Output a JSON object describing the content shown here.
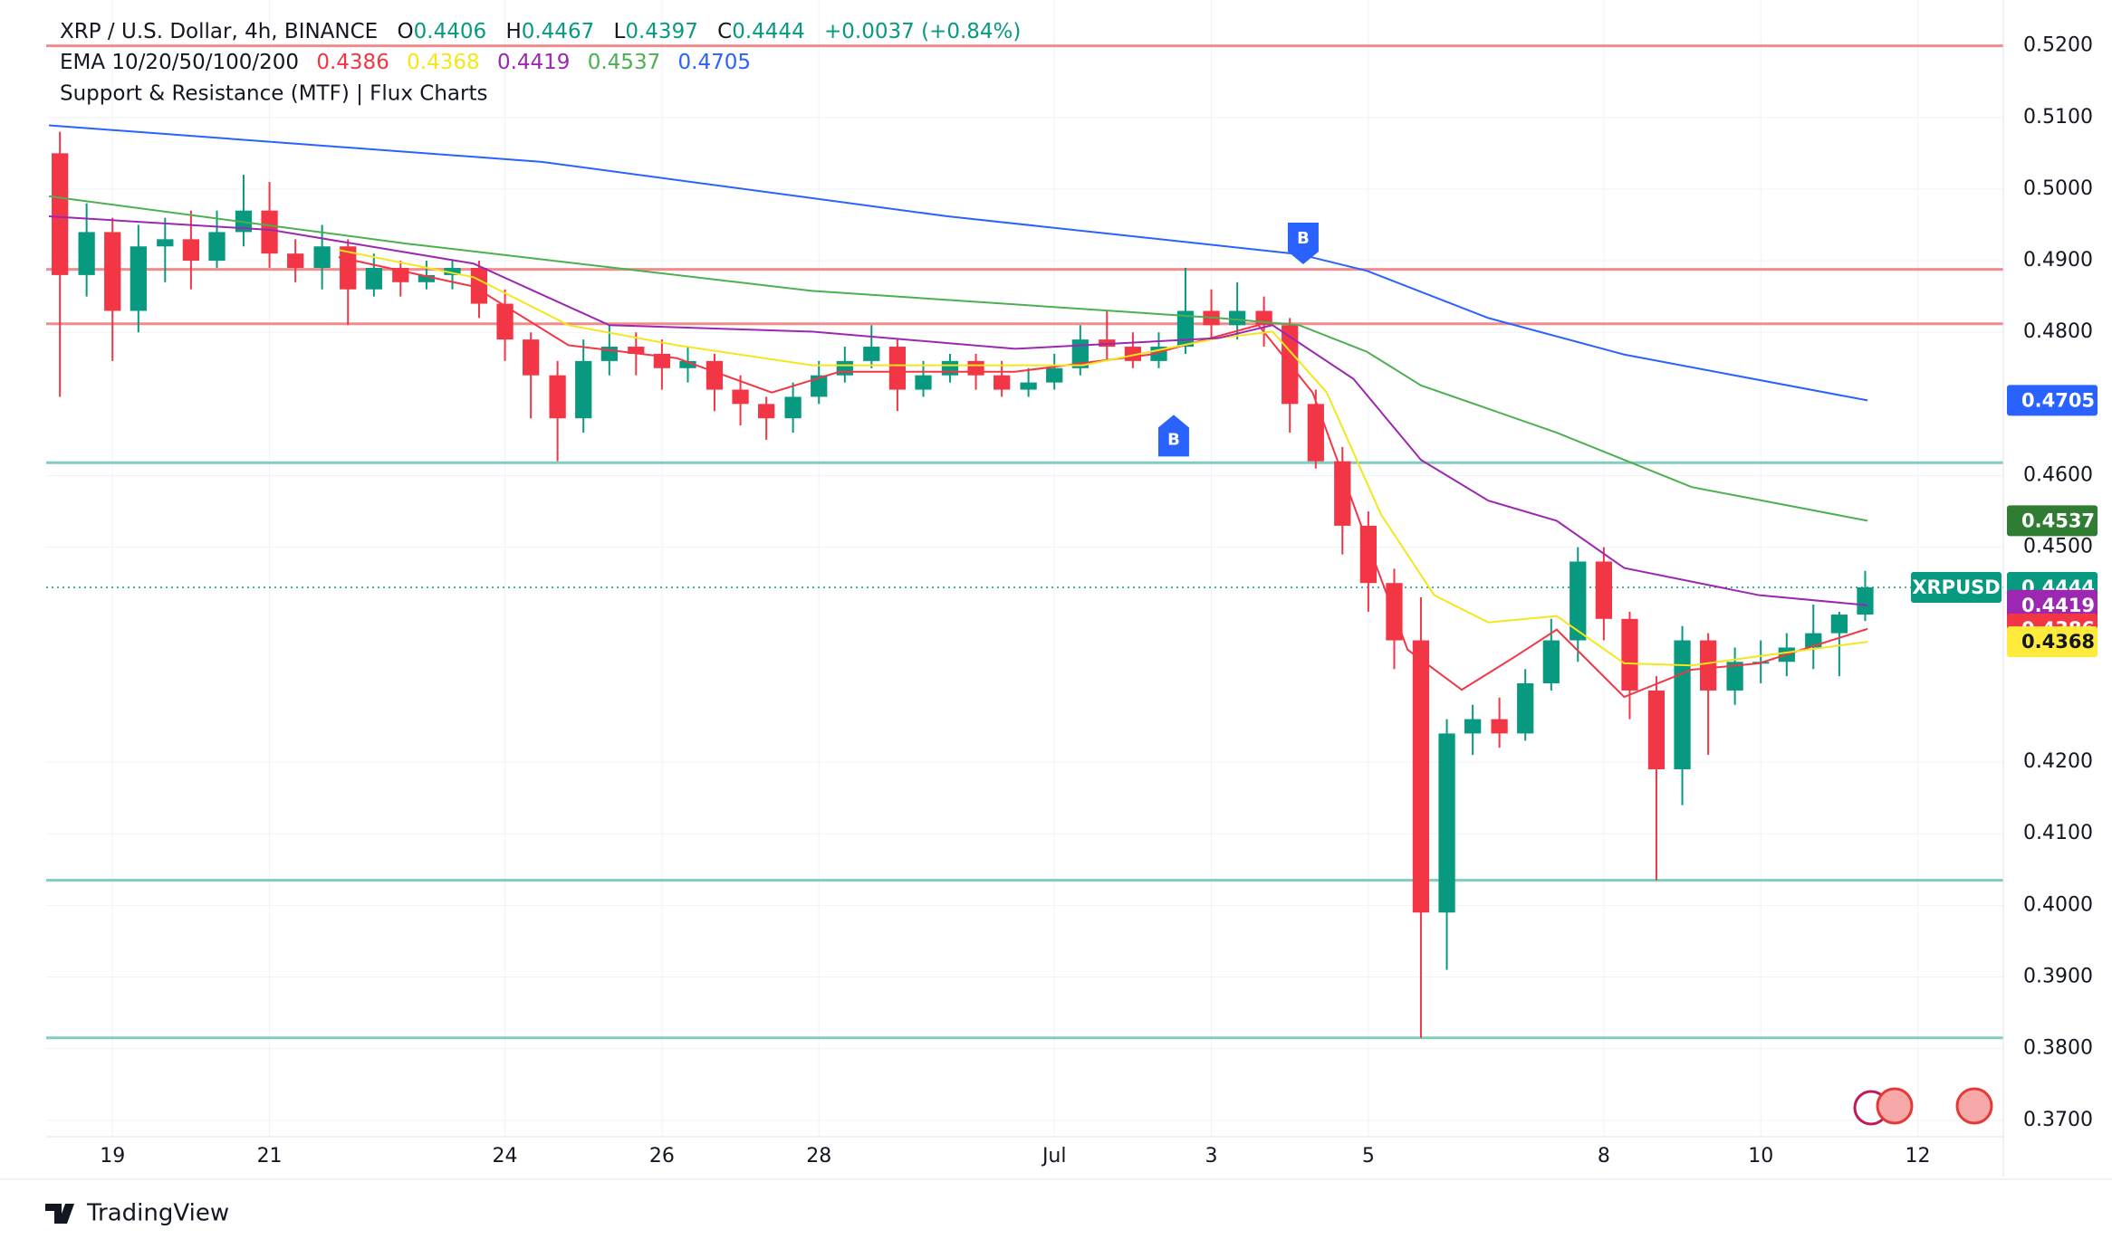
{
  "header": {
    "symbol": "XRP / U.S. Dollar, 4h, BINANCE",
    "ohlc_labels": [
      "O",
      "H",
      "L",
      "C"
    ],
    "change": "+0.0037 (+0.84%)",
    "ema_title": "EMA 10/20/50/100/200",
    "indicator": "Support & Resistance (MTF) | Flux Charts",
    "symbol_tag": "XRPUSD",
    "logo": "TradingView"
  },
  "chart_data": {
    "type": "candlestick",
    "x": [
      0.33,
      0.67,
      1,
      1.33,
      1.67,
      2,
      2.33,
      2.67,
      3,
      3.33,
      3.67,
      4,
      4.33,
      4.67,
      5,
      5.33,
      5.67,
      6,
      6.33,
      6.67,
      7,
      7.33,
      7.67,
      8,
      8.33,
      8.67,
      9,
      9.33,
      9.67,
      10,
      10.33,
      10.67,
      11,
      11.33,
      11.67,
      12,
      12.33,
      12.67,
      13,
      13.33,
      13.67,
      14,
      14.33,
      14.67,
      15,
      15.33,
      15.67,
      16,
      16.33,
      16.67,
      17,
      17.33,
      17.67,
      18,
      18.33,
      18.67,
      19,
      19.33,
      19.67,
      20,
      20.33,
      20.67,
      21,
      21.33,
      21.67,
      22,
      22.33,
      22.67,
      23,
      23.33
    ],
    "open": [
      0.505,
      0.488,
      0.494,
      0.483,
      0.492,
      0.493,
      0.49,
      0.494,
      0.497,
      0.491,
      0.489,
      0.492,
      0.486,
      0.489,
      0.487,
      0.488,
      0.489,
      0.484,
      0.479,
      0.474,
      0.468,
      0.476,
      0.478,
      0.477,
      0.475,
      0.476,
      0.472,
      0.47,
      0.468,
      0.471,
      0.474,
      0.476,
      0.478,
      0.472,
      0.474,
      0.476,
      0.474,
      0.472,
      0.473,
      0.475,
      0.479,
      0.478,
      0.476,
      0.478,
      0.483,
      0.481,
      0.483,
      0.481,
      0.47,
      0.462,
      0.453,
      0.445,
      0.437,
      0.399,
      0.424,
      0.426,
      0.424,
      0.431,
      0.437,
      0.448,
      0.44,
      0.43,
      0.419,
      0.437,
      0.43,
      0.434,
      0.434,
      0.436,
      0.438,
      0.4406
    ],
    "high": [
      0.508,
      0.498,
      0.496,
      0.495,
      0.496,
      0.497,
      0.497,
      0.502,
      0.501,
      0.493,
      0.495,
      0.493,
      0.491,
      0.49,
      0.49,
      0.49,
      0.49,
      0.486,
      0.48,
      0.476,
      0.479,
      0.481,
      0.48,
      0.479,
      0.478,
      0.477,
      0.474,
      0.471,
      0.473,
      0.476,
      0.478,
      0.481,
      0.479,
      0.476,
      0.477,
      0.477,
      0.476,
      0.475,
      0.477,
      0.481,
      0.483,
      0.48,
      0.48,
      0.489,
      0.486,
      0.487,
      0.485,
      0.482,
      0.472,
      0.464,
      0.455,
      0.447,
      0.443,
      0.426,
      0.428,
      0.429,
      0.433,
      0.44,
      0.45,
      0.45,
      0.441,
      0.432,
      0.439,
      0.438,
      0.436,
      0.437,
      0.438,
      0.442,
      0.441,
      0.4467
    ],
    "low": [
      0.471,
      0.485,
      0.476,
      0.48,
      0.487,
      0.486,
      0.489,
      0.492,
      0.489,
      0.487,
      0.486,
      0.481,
      0.485,
      0.485,
      0.486,
      0.486,
      0.482,
      0.476,
      0.468,
      0.462,
      0.466,
      0.474,
      0.474,
      0.472,
      0.473,
      0.469,
      0.467,
      0.465,
      0.466,
      0.47,
      0.473,
      0.475,
      0.469,
      0.471,
      0.473,
      0.472,
      0.471,
      0.471,
      0.472,
      0.474,
      0.476,
      0.475,
      0.475,
      0.477,
      0.479,
      0.479,
      0.478,
      0.466,
      0.461,
      0.449,
      0.441,
      0.433,
      0.3815,
      0.391,
      0.421,
      0.422,
      0.423,
      0.43,
      0.434,
      0.437,
      0.426,
      0.4035,
      0.414,
      0.421,
      0.428,
      0.431,
      0.432,
      0.433,
      0.432,
      0.4397
    ],
    "close": [
      0.488,
      0.494,
      0.483,
      0.492,
      0.493,
      0.49,
      0.494,
      0.497,
      0.491,
      0.489,
      0.492,
      0.486,
      0.489,
      0.487,
      0.488,
      0.489,
      0.484,
      0.479,
      0.474,
      0.468,
      0.476,
      0.478,
      0.477,
      0.475,
      0.476,
      0.472,
      0.47,
      0.468,
      0.471,
      0.474,
      0.476,
      0.478,
      0.472,
      0.474,
      0.476,
      0.474,
      0.472,
      0.473,
      0.475,
      0.479,
      0.478,
      0.476,
      0.478,
      0.483,
      0.481,
      0.483,
      0.481,
      0.47,
      0.462,
      0.453,
      0.445,
      0.437,
      0.399,
      0.424,
      0.426,
      0.424,
      0.431,
      0.437,
      0.448,
      0.44,
      0.43,
      0.419,
      0.437,
      0.43,
      0.434,
      0.434,
      0.436,
      0.438,
      0.4406,
      0.4444
    ],
    "up_color": "#089981",
    "down_color": "#f23645",
    "ema": [
      {
        "color": "#f23645",
        "x": [
          3.88,
          5.6,
          6.81,
          8.19,
          9.4,
          10.26,
          12.5,
          14.22,
          15.6,
          16.29,
          16.98,
          17.5,
          18.19,
          18.88,
          19.4,
          20.26,
          21.12,
          21.98,
          23.36
        ],
        "values": [
          0.4905,
          0.4864,
          0.4782,
          0.4764,
          0.4716,
          0.4745,
          0.4745,
          0.4769,
          0.481,
          0.4716,
          0.4509,
          0.4357,
          0.4301,
          0.4348,
          0.4385,
          0.4291,
          0.4329,
          0.4338,
          0.4386
        ]
      },
      {
        "color": "#f5e61b",
        "x": [
          3.88,
          5.6,
          6.81,
          8.19,
          9.91,
          13.36,
          15.09,
          15.78,
          16.47,
          17.16,
          17.84,
          18.53,
          19.4,
          20.26,
          21.12,
          21.98,
          23.36
        ],
        "values": [
          0.4915,
          0.4877,
          0.481,
          0.4782,
          0.4754,
          0.4754,
          0.4792,
          0.4801,
          0.4716,
          0.4546,
          0.4433,
          0.4395,
          0.4404,
          0.4338,
          0.4335,
          0.4348,
          0.4368
        ]
      },
      {
        "color": "#9c27b0",
        "x": [
          0.19,
          3.02,
          5.6,
          7.33,
          9.91,
          12.5,
          15.09,
          15.78,
          16.81,
          17.67,
          18.53,
          19.4,
          20.26,
          21.98,
          23.36
        ],
        "values": [
          0.4962,
          0.4943,
          0.4896,
          0.481,
          0.4801,
          0.4777,
          0.4792,
          0.481,
          0.4735,
          0.4622,
          0.4565,
          0.4537,
          0.4471,
          0.4433,
          0.4419
        ]
      },
      {
        "color": "#4caf50",
        "x": [
          0.19,
          4.74,
          9.91,
          15.09,
          16.12,
          16.98,
          17.67,
          19.4,
          21.12,
          23.36
        ],
        "values": [
          0.499,
          0.4924,
          0.4858,
          0.482,
          0.481,
          0.4773,
          0.4726,
          0.466,
          0.4584,
          0.4537
        ]
      },
      {
        "color": "#2962ff",
        "x": [
          0.19,
          6.47,
          11.64,
          16.12,
          16.98,
          18.53,
          20.26,
          23.36
        ],
        "values": [
          0.5089,
          0.5038,
          0.4962,
          0.4909,
          0.4886,
          0.482,
          0.4769,
          0.4705
        ]
      }
    ],
    "levels": [
      {
        "value": 0.52,
        "color": "#f28b8b"
      },
      {
        "value": 0.4888,
        "color": "#f28b8b"
      },
      {
        "value": 0.4812,
        "color": "#f28b8b"
      },
      {
        "value": 0.4618,
        "color": "#7ecdc0"
      },
      {
        "value": 0.4035,
        "color": "#7ecdc0"
      },
      {
        "value": 0.3815,
        "color": "#7ecdc0"
      }
    ],
    "markers": [
      {
        "label": "B",
        "x": 14.52,
        "y": 0.4695,
        "position": "below",
        "color": "#2962ff"
      },
      {
        "label": "B",
        "x": 16.17,
        "y": 0.4885,
        "position": "above",
        "color": "#2962ff"
      }
    ],
    "xlim": [
      0.155,
      25.09
    ],
    "xticks": [
      {
        "value": 1,
        "label": "19"
      },
      {
        "value": 3,
        "label": "21"
      },
      {
        "value": 6,
        "label": "24"
      },
      {
        "value": 8,
        "label": "26"
      },
      {
        "value": 10,
        "label": "28"
      },
      {
        "value": 13,
        "label": "Jul"
      },
      {
        "value": 15,
        "label": "3"
      },
      {
        "value": 17,
        "label": "5"
      },
      {
        "value": 20,
        "label": "8"
      },
      {
        "value": 22,
        "label": "10"
      },
      {
        "value": 24,
        "label": "12"
      }
    ],
    "ylim": [
      0.3677,
      0.5264
    ],
    "yticks": [
      {
        "value": 0.52,
        "label": "0.5200"
      },
      {
        "value": 0.51,
        "label": "0.5100"
      },
      {
        "value": 0.5,
        "label": "0.5000"
      },
      {
        "value": 0.49,
        "label": "0.4900"
      },
      {
        "value": 0.48,
        "label": "0.4800"
      },
      {
        "value": 0.46,
        "label": "0.4600"
      },
      {
        "value": 0.45,
        "label": "0.4500"
      },
      {
        "value": 0.42,
        "label": "0.4200"
      },
      {
        "value": 0.41,
        "label": "0.4100"
      },
      {
        "value": 0.4,
        "label": "0.4000"
      },
      {
        "value": 0.39,
        "label": "0.3900"
      },
      {
        "value": 0.38,
        "label": "0.3800"
      },
      {
        "value": 0.37,
        "label": "0.3700"
      }
    ],
    "grid": true
  }
}
